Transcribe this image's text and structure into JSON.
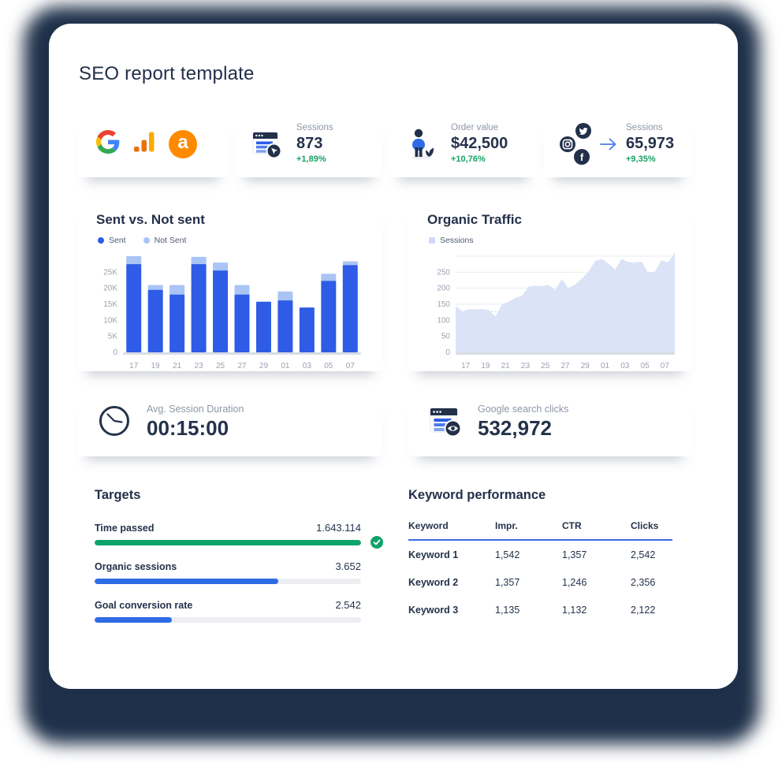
{
  "page": {
    "title": "SEO report template"
  },
  "colors": {
    "navy": "#22304a",
    "accent_blue": "#2e5ce6",
    "light_blue": "#a9c4f5",
    "green": "#17a263",
    "area_fill": "#dbe3f7",
    "progress_green": "#0fa36b",
    "progress_blue": "#2e6be5",
    "table_rule_blue": "#3a6be0",
    "gridline": "#e9ebf0",
    "baseline": "#d8dce3"
  },
  "integrations": {
    "icons": [
      "google-icon",
      "google-analytics-icon",
      "ahrefs-icon"
    ]
  },
  "stat_cards": [
    {
      "label": "Sessions",
      "value": "873",
      "delta": "+1,89%"
    },
    {
      "label": "Order value",
      "value": "$42,500",
      "delta": "+10,76%"
    },
    {
      "label": "Sessions",
      "value": "65,973",
      "delta": "+9,35%"
    }
  ],
  "metric_cards": [
    {
      "label": "Avg. Session Duration",
      "value": "00:15:00"
    },
    {
      "label": "Google search clicks",
      "value": "532,972"
    }
  ],
  "chart_data": [
    {
      "type": "bar",
      "title": "Sent vs. Not sent",
      "stacked": true,
      "categories": [
        "17",
        "19",
        "21",
        "23",
        "25",
        "27",
        "29",
        "01",
        "03",
        "05",
        "07"
      ],
      "series": [
        {
          "name": "Sent",
          "values": [
            27500,
            19500,
            18000,
            27500,
            25500,
            18000,
            15800,
            16200,
            14000,
            22300,
            27200
          ]
        },
        {
          "name": "Not Sent",
          "values": [
            2500,
            1500,
            3000,
            2300,
            2500,
            3000,
            0,
            2800,
            0,
            2200,
            1200
          ]
        }
      ],
      "ylim": [
        0,
        30000
      ],
      "yticks": [
        {
          "v": 0,
          "t": "0"
        },
        {
          "v": 5000,
          "t": "5K"
        },
        {
          "v": 10000,
          "t": "10K"
        },
        {
          "v": 15000,
          "t": "15K"
        },
        {
          "v": 20000,
          "t": "20K"
        },
        {
          "v": 25000,
          "t": "25K"
        }
      ],
      "legend_position": "top-left",
      "grid": false
    },
    {
      "type": "area",
      "title": "Organic Traffic",
      "series": [
        {
          "name": "Sessions"
        }
      ],
      "x_ticks": [
        "17",
        "19",
        "21",
        "23",
        "25",
        "27",
        "29",
        "01",
        "03",
        "05",
        "07"
      ],
      "values": [
        145,
        128,
        135,
        134,
        135,
        132,
        112,
        150,
        158,
        170,
        176,
        205,
        208,
        207,
        210,
        195,
        228,
        200,
        212,
        230,
        252,
        285,
        291,
        277,
        258,
        291,
        282,
        280,
        283,
        248,
        252,
        287,
        281,
        312
      ],
      "ylim": [
        0,
        300
      ],
      "yticks": [
        {
          "v": 0,
          "t": "0"
        },
        {
          "v": 50,
          "t": "50"
        },
        {
          "v": 100,
          "t": "100"
        },
        {
          "v": 150,
          "t": "150"
        },
        {
          "v": 200,
          "t": "200"
        },
        {
          "v": 250,
          "t": "250"
        }
      ],
      "dashed_line_value": 127,
      "legend_position": "top-left",
      "grid": true
    }
  ],
  "targets": {
    "title": "Targets",
    "rows": [
      {
        "label": "Time passed",
        "value": "1.643.114",
        "pct": 100,
        "bar_color": "green",
        "complete": true
      },
      {
        "label": "Organic sessions",
        "value": "3.652",
        "pct": 69,
        "bar_color": "blue",
        "complete": false
      },
      {
        "label": "Goal conversion rate",
        "value": "2.542",
        "pct": 29,
        "bar_color": "blue",
        "complete": false
      }
    ]
  },
  "keyword_table": {
    "title": "Keyword performance",
    "headers": [
      "Keyword",
      "Impr.",
      "CTR",
      "Clicks"
    ],
    "rows": [
      [
        "Keyword 1",
        "1,542",
        "1,357",
        "2,542"
      ],
      [
        "Keyword 2",
        "1,357",
        "1,246",
        "2,356"
      ],
      [
        "Keyword 3",
        "1,135",
        "1,132",
        "2,122"
      ]
    ]
  }
}
